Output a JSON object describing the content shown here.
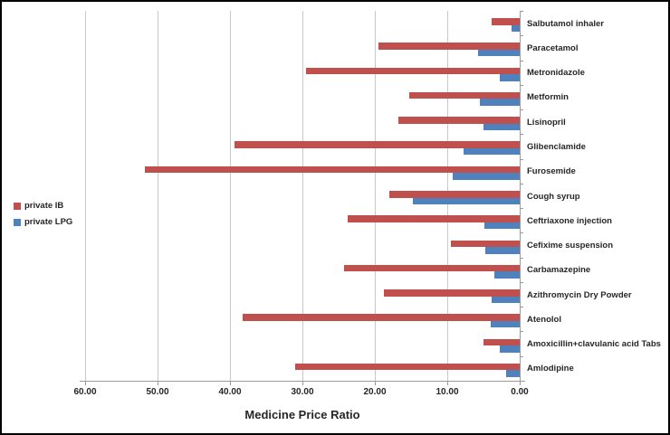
{
  "chart_data": {
    "type": "bar",
    "orientation": "horizontal",
    "title": "",
    "xlabel": "Medicine Price Ratio",
    "ylabel": "",
    "x_axis": {
      "min": 0,
      "max": 60,
      "reversed": true,
      "tick_step": 10,
      "tick_labels": [
        "60.00",
        "50.00",
        "40.00",
        "30.00",
        "20.00",
        "10.00",
        "0.00"
      ]
    },
    "grid": true,
    "categories": [
      "Salbutamol inhaler",
      "Paracetamol",
      "Metronidazole",
      "Metformin",
      "Lisinopril",
      "Glibenclamide",
      "Furosemide",
      "Cough syrup",
      "Ceftriaxone injection",
      "Cefixime suspension",
      "Carbamazepine",
      "Azithromycin Dry Powder",
      "Atenolol",
      "Amoxicillin+clavulanic acid Tabs",
      "Amlodipine"
    ],
    "series": [
      {
        "name": "private IB",
        "color": "#C0504D",
        "values": [
          3.9,
          19.5,
          29.5,
          15.2,
          16.8,
          39.4,
          51.8,
          18.0,
          23.8,
          9.5,
          24.2,
          18.8,
          38.2,
          5.0,
          31.0
        ]
      },
      {
        "name": "private LPG",
        "color": "#4F81BD",
        "values": [
          1.1,
          5.7,
          2.8,
          5.5,
          5.0,
          7.8,
          9.2,
          14.7,
          4.9,
          4.7,
          3.5,
          3.9,
          4.0,
          2.8,
          1.9
        ]
      }
    ],
    "legend": {
      "position": "middle-left",
      "entries": [
        "private IB",
        "private LPG"
      ]
    }
  },
  "colors": {
    "gridline": "#C9C9C9",
    "axis": "#9B9B9B",
    "text": "#262626",
    "background": "#FFFFFF",
    "frame_border": "#000000"
  }
}
